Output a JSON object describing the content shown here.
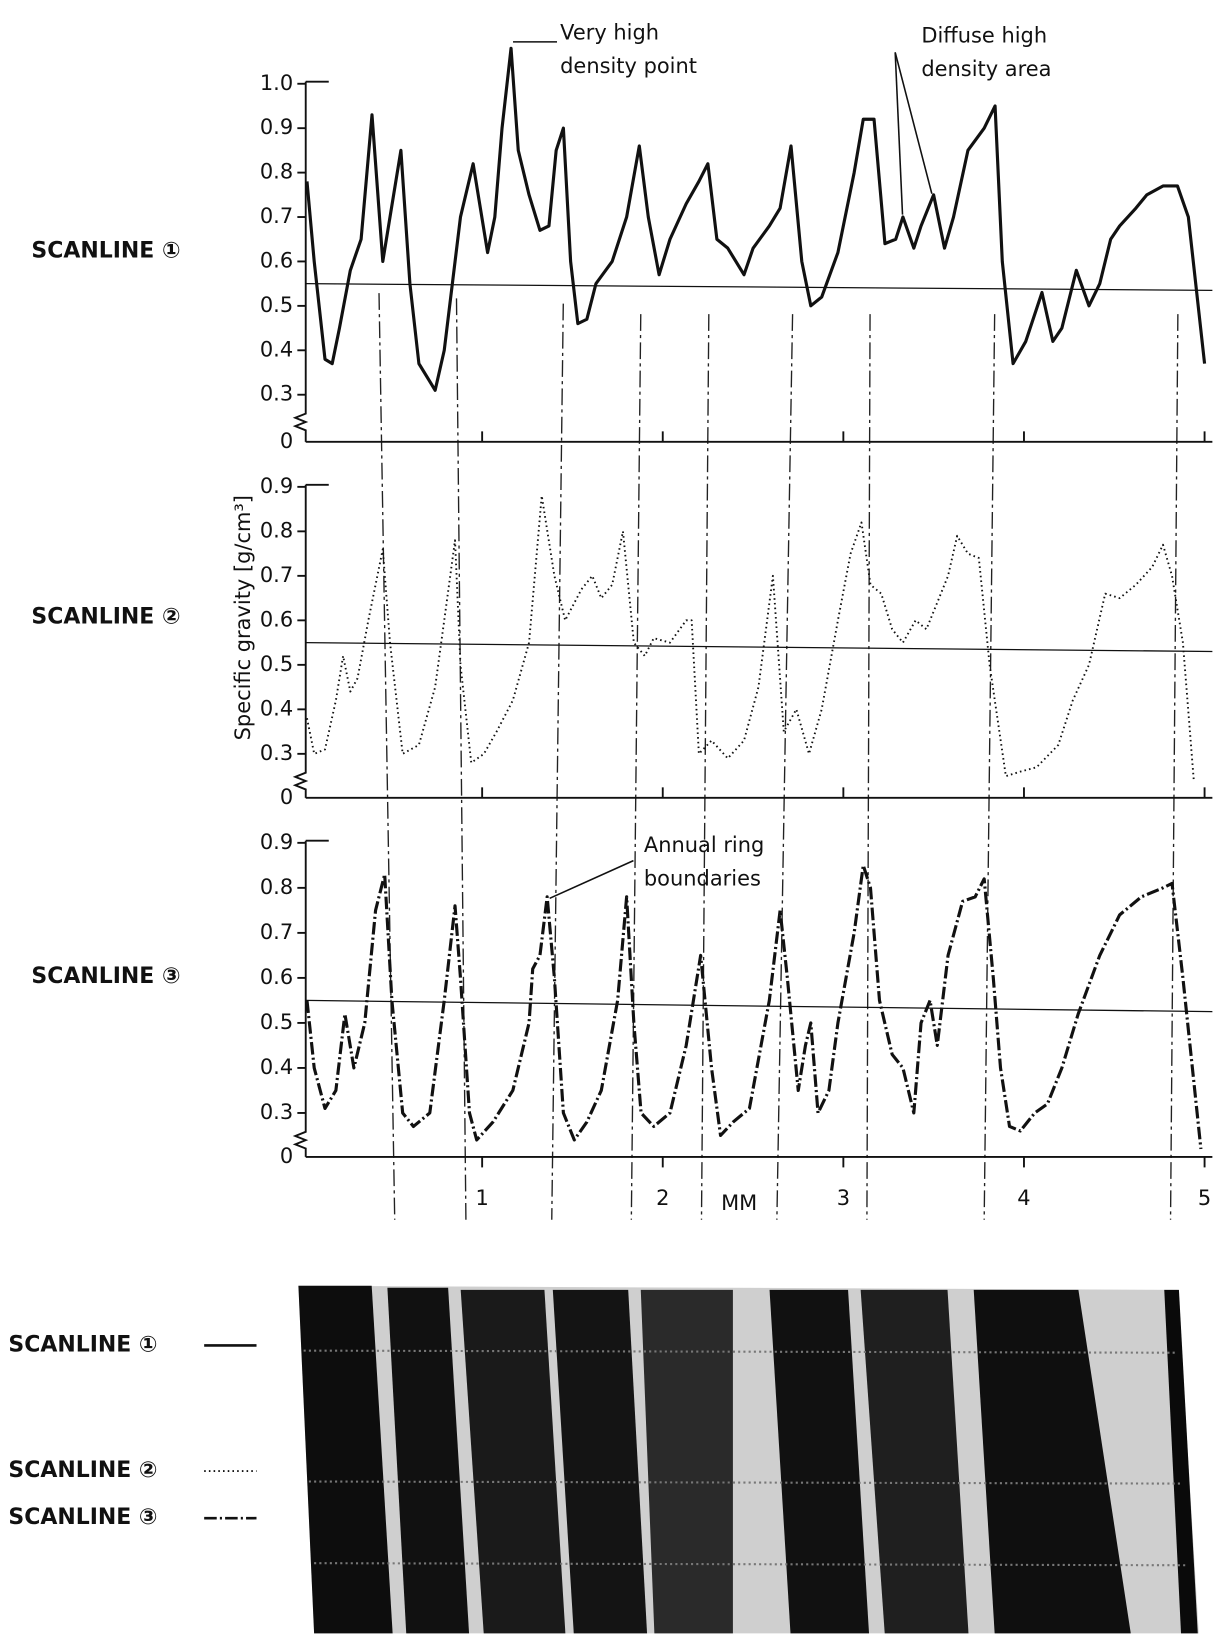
{
  "chart_data": [
    {
      "type": "line",
      "x": [
        0.03,
        0.07,
        0.13,
        0.17,
        0.21,
        0.27,
        0.33,
        0.39,
        0.45,
        0.49,
        0.55,
        0.6,
        0.65,
        0.71,
        0.74,
        0.79,
        0.88,
        0.95,
        0.99,
        1.03,
        1.07,
        1.11,
        1.16,
        1.2,
        1.26,
        1.32,
        1.37,
        1.41,
        1.45,
        1.49,
        1.53,
        1.58,
        1.63,
        1.72,
        1.8,
        1.87,
        1.92,
        1.98,
        2.04,
        2.13,
        2.2,
        2.25,
        2.3,
        2.36,
        2.45,
        2.5,
        2.59,
        2.65,
        2.71,
        2.77,
        2.82,
        2.88,
        2.97,
        3.06,
        3.11,
        3.17,
        3.23,
        3.29,
        3.33,
        3.39,
        3.43,
        3.5,
        3.56,
        3.61,
        3.69,
        3.78,
        3.84,
        3.88,
        3.94,
        4.01,
        4.1,
        4.16,
        4.21,
        4.29,
        4.36,
        4.42,
        4.48,
        4.53,
        4.62,
        4.68,
        4.77,
        4.85,
        4.91,
        5.0
      ],
      "series": [
        {
          "name": "SCANLINE ①",
          "color": "#111111",
          "style": "solid",
          "values": [
            0.78,
            0.6,
            0.38,
            0.37,
            0.45,
            0.58,
            0.65,
            0.93,
            0.6,
            0.7,
            0.85,
            0.55,
            0.37,
            0.33,
            0.31,
            0.4,
            0.7,
            0.82,
            0.72,
            0.62,
            0.7,
            0.9,
            1.08,
            0.85,
            0.75,
            0.67,
            0.68,
            0.85,
            0.9,
            0.6,
            0.46,
            0.47,
            0.55,
            0.6,
            0.7,
            0.86,
            0.7,
            0.57,
            0.65,
            0.73,
            0.78,
            0.82,
            0.65,
            0.63,
            0.57,
            0.63,
            0.68,
            0.72,
            0.86,
            0.6,
            0.5,
            0.52,
            0.62,
            0.8,
            0.92,
            0.92,
            0.64,
            0.65,
            0.7,
            0.63,
            0.68,
            0.75,
            0.63,
            0.7,
            0.85,
            0.9,
            0.95,
            0.6,
            0.37,
            0.42,
            0.53,
            0.42,
            0.45,
            0.58,
            0.5,
            0.55,
            0.65,
            0.68,
            0.72,
            0.75,
            0.77,
            0.77,
            0.7,
            0.37
          ]
        }
      ],
      "ylim": [
        0.3,
        1.0
      ],
      "yticks": [
        0.3,
        0.4,
        0.5,
        0.6,
        0.7,
        0.8,
        0.9,
        {
          "value": 1,
          "label": "1.0"
        }
      ],
      "axis_break_value": 0,
      "reference_line": [
        0.55,
        0.535
      ],
      "annotations": [
        {
          "text": [
            "Very high",
            "density point"
          ]
        },
        {
          "text": [
            "Diffuse high",
            "density area"
          ]
        }
      ]
    },
    {
      "type": "line",
      "x": [
        0.03,
        0.07,
        0.13,
        0.19,
        0.23,
        0.27,
        0.31,
        0.37,
        0.45,
        0.49,
        0.56,
        0.65,
        0.74,
        0.79,
        0.85,
        0.88,
        0.94,
        1.01,
        1.08,
        1.17,
        1.26,
        1.33,
        1.4,
        1.46,
        1.55,
        1.61,
        1.66,
        1.72,
        1.78,
        1.84,
        1.9,
        1.95,
        2.04,
        2.13,
        2.16,
        2.2,
        2.27,
        2.36,
        2.45,
        2.53,
        2.61,
        2.67,
        2.74,
        2.81,
        2.88,
        2.97,
        3.04,
        3.1,
        3.15,
        3.21,
        3.27,
        3.33,
        3.4,
        3.46,
        3.52,
        3.58,
        3.63,
        3.69,
        3.75,
        3.81,
        3.9,
        3.98,
        4.07,
        4.19,
        4.27,
        4.36,
        4.45,
        4.53,
        4.62,
        4.71,
        4.77,
        4.82,
        4.88,
        4.94
      ],
      "series": [
        {
          "name": "SCANLINE ②",
          "color": "#111111",
          "style": "dotted",
          "values": [
            0.38,
            0.3,
            0.31,
            0.42,
            0.52,
            0.44,
            0.47,
            0.6,
            0.76,
            0.55,
            0.3,
            0.32,
            0.45,
            0.6,
            0.78,
            0.5,
            0.28,
            0.3,
            0.35,
            0.42,
            0.55,
            0.88,
            0.7,
            0.6,
            0.67,
            0.7,
            0.65,
            0.68,
            0.8,
            0.55,
            0.52,
            0.56,
            0.55,
            0.6,
            0.6,
            0.3,
            0.33,
            0.29,
            0.33,
            0.45,
            0.7,
            0.35,
            0.4,
            0.3,
            0.4,
            0.6,
            0.75,
            0.82,
            0.68,
            0.66,
            0.58,
            0.55,
            0.6,
            0.58,
            0.64,
            0.7,
            0.79,
            0.75,
            0.74,
            0.5,
            0.25,
            0.26,
            0.27,
            0.32,
            0.42,
            0.5,
            0.66,
            0.65,
            0.68,
            0.72,
            0.77,
            0.7,
            0.55,
            0.24
          ]
        }
      ],
      "ylim": [
        0.3,
        0.9
      ],
      "yticks": [
        0.3,
        0.4,
        0.5,
        0.6,
        0.7,
        0.8,
        0.9
      ],
      "axis_break_value": 0,
      "reference_line": [
        0.55,
        0.53
      ]
    },
    {
      "type": "line",
      "x": [
        0.03,
        0.07,
        0.13,
        0.19,
        0.24,
        0.29,
        0.35,
        0.41,
        0.46,
        0.5,
        0.56,
        0.62,
        0.71,
        0.79,
        0.85,
        0.88,
        0.93,
        0.97,
        1.06,
        1.17,
        1.26,
        1.28,
        1.32,
        1.36,
        1.4,
        1.45,
        1.51,
        1.58,
        1.66,
        1.75,
        1.8,
        1.84,
        1.88,
        1.95,
        2.04,
        2.13,
        2.21,
        2.27,
        2.32,
        2.39,
        2.48,
        2.59,
        2.65,
        2.69,
        2.75,
        2.79,
        2.82,
        2.86,
        2.92,
        2.97,
        3.06,
        3.11,
        3.15,
        3.2,
        3.27,
        3.33,
        3.39,
        3.43,
        3.48,
        3.52,
        3.58,
        3.66,
        3.73,
        3.78,
        3.83,
        3.87,
        3.92,
        3.98,
        4.06,
        4.13,
        4.21,
        4.3,
        4.42,
        4.53,
        4.65,
        4.77,
        4.82,
        4.88,
        4.98
      ],
      "series": [
        {
          "name": "SCANLINE ③",
          "color": "#111111",
          "style": "dashdot",
          "values": [
            0.55,
            0.4,
            0.31,
            0.35,
            0.52,
            0.4,
            0.5,
            0.75,
            0.83,
            0.55,
            0.3,
            0.27,
            0.3,
            0.55,
            0.76,
            0.6,
            0.3,
            0.24,
            0.28,
            0.35,
            0.5,
            0.62,
            0.65,
            0.78,
            0.6,
            0.3,
            0.24,
            0.28,
            0.35,
            0.55,
            0.78,
            0.5,
            0.3,
            0.27,
            0.3,
            0.45,
            0.65,
            0.4,
            0.25,
            0.28,
            0.31,
            0.55,
            0.75,
            0.6,
            0.35,
            0.45,
            0.5,
            0.3,
            0.35,
            0.5,
            0.7,
            0.85,
            0.8,
            0.55,
            0.43,
            0.4,
            0.3,
            0.5,
            0.55,
            0.45,
            0.65,
            0.77,
            0.78,
            0.82,
            0.6,
            0.4,
            0.27,
            0.26,
            0.3,
            0.32,
            0.4,
            0.52,
            0.65,
            0.74,
            0.78,
            0.8,
            0.81,
            0.6,
            0.22
          ]
        }
      ],
      "ylim": [
        0.3,
        0.9
      ],
      "yticks": [
        0.3,
        0.4,
        0.5,
        0.6,
        0.7,
        0.8,
        0.9
      ],
      "axis_break_value": 0,
      "reference_line": [
        0.55,
        0.525
      ],
      "annotations": [
        {
          "text": [
            "Annual ring",
            "boundaries"
          ]
        }
      ]
    }
  ],
  "x_axis": {
    "label": "MM",
    "xlim": [
      0,
      5.02
    ],
    "xticks": [
      1,
      2,
      3,
      4,
      5
    ]
  },
  "y_label": "Specific gravity [g/cm³]"
}
